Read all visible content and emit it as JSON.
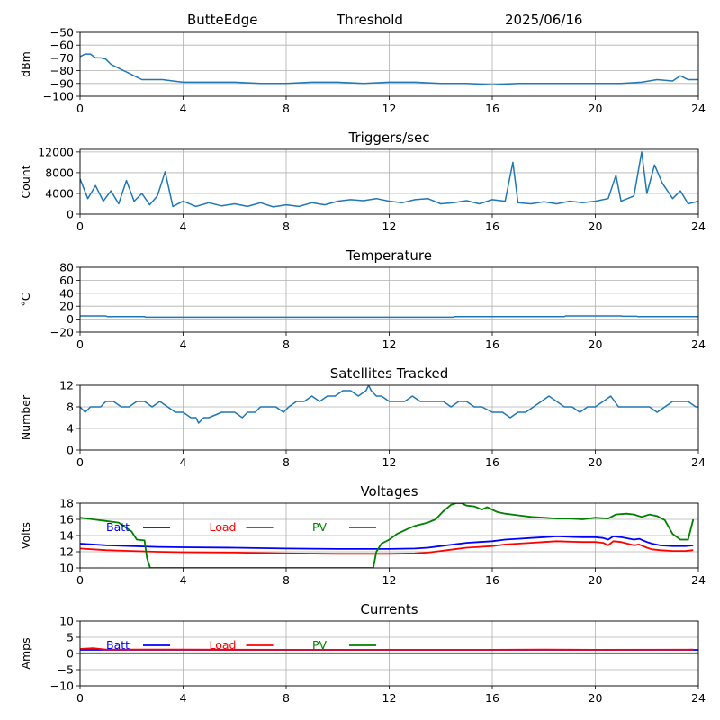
{
  "header": {
    "site": "ButteEdge",
    "label": "Threshold",
    "date": "2025/06/16"
  },
  "colors": {
    "series": "#1f77b4",
    "batt": "#0000ff",
    "load": "#ff0000",
    "pv": "#008000",
    "grid": "#b0b0b0"
  },
  "chart_data": [
    {
      "id": "threshold",
      "type": "line",
      "title": "",
      "xlabel": "",
      "ylabel": "dBm",
      "xlim": [
        0,
        24
      ],
      "ylim": [
        -100,
        -50
      ],
      "xticks": [
        0,
        4,
        8,
        12,
        16,
        20,
        24
      ],
      "yticks": [
        -100,
        -90,
        -80,
        -70,
        -60,
        -50
      ],
      "grid": true,
      "series": [
        {
          "x": [
            0,
            0.2,
            0.4,
            0.6,
            0.8,
            1.0,
            1.2,
            1.5,
            1.8,
            2.0,
            2.2,
            2.4,
            2.8,
            3.2,
            3.6,
            4.0,
            5,
            6,
            7,
            8,
            9,
            10,
            11,
            12,
            13,
            14,
            15,
            16,
            17,
            18,
            19,
            20,
            21,
            21.8,
            22.4,
            23.0,
            23.3,
            23.6,
            24
          ],
          "y": [
            -69,
            -67,
            -67,
            -70,
            -70,
            -71,
            -75,
            -78,
            -81,
            -83,
            -85,
            -87,
            -87,
            -87,
            -88,
            -89,
            -89,
            -89,
            -90,
            -90,
            -89,
            -89,
            -90,
            -89,
            -89,
            -90,
            -90,
            -91,
            -90,
            -90,
            -90,
            -90,
            -90,
            -89,
            -87,
            -88,
            -84,
            -87,
            -87
          ]
        }
      ]
    },
    {
      "id": "triggers",
      "type": "line",
      "title": "Triggers/sec",
      "xlabel": "",
      "ylabel": "Count",
      "xlim": [
        0,
        24
      ],
      "ylim": [
        0,
        12500
      ],
      "xticks": [
        0,
        4,
        8,
        12,
        16,
        20,
        24
      ],
      "yticks": [
        0,
        4000,
        8000,
        12000
      ],
      "grid": true,
      "series": [
        {
          "x": [
            0,
            0.3,
            0.6,
            0.9,
            1.2,
            1.5,
            1.8,
            2.1,
            2.4,
            2.7,
            3.0,
            3.3,
            3.6,
            4.0,
            4.5,
            5,
            5.5,
            6,
            6.5,
            7,
            7.5,
            8,
            8.5,
            9,
            9.5,
            10,
            10.5,
            11,
            11.5,
            12,
            12.5,
            13,
            13.5,
            14,
            14.5,
            15,
            15.5,
            16,
            16.5,
            16.8,
            17,
            17.5,
            18,
            18.5,
            19,
            19.5,
            20,
            20.5,
            20.8,
            21,
            21.5,
            21.8,
            22,
            22.3,
            22.6,
            23,
            23.3,
            23.6,
            24
          ],
          "y": [
            6800,
            3000,
            5500,
            2500,
            4500,
            2000,
            6500,
            2500,
            4000,
            1800,
            3500,
            8200,
            1500,
            2500,
            1500,
            2200,
            1600,
            2000,
            1500,
            2200,
            1400,
            1800,
            1500,
            2200,
            1800,
            2500,
            2800,
            2600,
            3000,
            2500,
            2200,
            2800,
            3000,
            2000,
            2200,
            2600,
            2000,
            2800,
            2500,
            10000,
            2200,
            2000,
            2400,
            2000,
            2500,
            2200,
            2500,
            3000,
            7500,
            2500,
            3500,
            12000,
            4000,
            9500,
            6000,
            3000,
            4500,
            2000,
            2500
          ]
        }
      ]
    },
    {
      "id": "temperature",
      "type": "line",
      "title": "Temperature",
      "xlabel": "",
      "ylabel": "°C",
      "xlim": [
        0,
        24
      ],
      "ylim": [
        -20,
        80
      ],
      "xticks": [
        0,
        4,
        8,
        12,
        16,
        20,
        24
      ],
      "yticks": [
        -20,
        0,
        20,
        40,
        60,
        80
      ],
      "grid": true,
      "series": [
        {
          "x": [
            0,
            1,
            1.05,
            2.5,
            2.55,
            14.5,
            14.55,
            18.8,
            18.85,
            21,
            21.05,
            21.6,
            21.65,
            24
          ],
          "y": [
            5,
            5,
            4,
            4,
            3,
            3,
            4,
            4,
            5,
            5,
            4.5,
            4.5,
            4,
            4
          ]
        }
      ]
    },
    {
      "id": "satellites",
      "type": "line",
      "title": "Satellites Tracked",
      "xlabel": "",
      "ylabel": "Number",
      "xlim": [
        0,
        24
      ],
      "ylim": [
        0,
        12
      ],
      "xticks": [
        0,
        4,
        8,
        12,
        16,
        20,
        24
      ],
      "yticks": [
        0,
        4,
        8,
        12
      ],
      "grid": true,
      "series": [
        {
          "x": [
            0,
            0.2,
            0.4,
            0.6,
            0.8,
            1.0,
            1.3,
            1.6,
            1.9,
            2.2,
            2.5,
            2.8,
            3.1,
            3.4,
            3.7,
            4.0,
            4.3,
            4.5,
            4.6,
            4.8,
            5.0,
            5.5,
            6.0,
            6.3,
            6.5,
            6.8,
            7.0,
            7.3,
            7.6,
            7.9,
            8.1,
            8.4,
            8.7,
            9.0,
            9.3,
            9.6,
            9.9,
            10.2,
            10.5,
            10.8,
            11.1,
            11.2,
            11.3,
            11.5,
            11.7,
            12.0,
            12.3,
            12.6,
            12.9,
            13.2,
            13.5,
            13.8,
            14.1,
            14.4,
            14.7,
            15.0,
            15.3,
            15.6,
            16.0,
            16.4,
            16.7,
            17.0,
            17.3,
            17.6,
            17.9,
            18.2,
            18.5,
            18.8,
            19.1,
            19.4,
            19.7,
            20.0,
            20.3,
            20.6,
            20.9,
            21.2,
            21.5,
            21.8,
            22.1,
            22.4,
            22.7,
            23.0,
            23.3,
            23.6,
            23.9,
            24
          ],
          "y": [
            8,
            7,
            8,
            8,
            8,
            9,
            9,
            8,
            8,
            9,
            9,
            8,
            9,
            8,
            7,
            7,
            6,
            6,
            5,
            6,
            6,
            7,
            7,
            6,
            7,
            7,
            8,
            8,
            8,
            7,
            8,
            9,
            9,
            10,
            9,
            10,
            10,
            11,
            11,
            10,
            11,
            12,
            11,
            10,
            10,
            9,
            9,
            9,
            10,
            9,
            9,
            9,
            9,
            8,
            9,
            9,
            8,
            8,
            7,
            7,
            6,
            7,
            7,
            8,
            9,
            10,
            9,
            8,
            8,
            7,
            8,
            8,
            9,
            10,
            8,
            8,
            8,
            8,
            8,
            7,
            8,
            9,
            9,
            9,
            8,
            8
          ]
        }
      ]
    },
    {
      "id": "voltages",
      "type": "line",
      "title": "Voltages",
      "xlabel": "",
      "ylabel": "Volts",
      "xlim": [
        0,
        24
      ],
      "ylim": [
        10,
        18
      ],
      "xticks": [
        0,
        4,
        8,
        12,
        16,
        20,
        24
      ],
      "yticks": [
        10,
        12,
        14,
        16,
        18
      ],
      "grid": true,
      "legend": "top-left",
      "series": [
        {
          "name": "Batt",
          "color": "batt",
          "x": [
            0,
            0.5,
            1,
            2,
            3,
            4,
            6,
            8,
            10,
            12,
            13,
            13.5,
            14,
            14.5,
            15,
            15.5,
            16,
            16.5,
            17,
            17.5,
            18,
            18.5,
            19,
            19.5,
            20,
            20.3,
            20.5,
            20.7,
            21,
            21.5,
            21.7,
            22,
            22.2,
            22.5,
            23,
            23.5,
            23.8
          ],
          "y": [
            13.0,
            12.9,
            12.8,
            12.7,
            12.6,
            12.55,
            12.5,
            12.4,
            12.35,
            12.35,
            12.4,
            12.5,
            12.7,
            12.9,
            13.1,
            13.2,
            13.3,
            13.5,
            13.6,
            13.7,
            13.8,
            13.9,
            13.85,
            13.8,
            13.8,
            13.7,
            13.5,
            13.9,
            13.8,
            13.5,
            13.6,
            13.2,
            13.0,
            12.8,
            12.7,
            12.7,
            12.8
          ]
        },
        {
          "name": "Load",
          "color": "load",
          "x": [
            0,
            0.5,
            1,
            2,
            3,
            4,
            6,
            8,
            10,
            12,
            13,
            13.5,
            14,
            14.5,
            15,
            15.5,
            16,
            16.5,
            17,
            17.5,
            18,
            18.5,
            19,
            19.5,
            20,
            20.3,
            20.5,
            20.7,
            21,
            21.5,
            21.7,
            22,
            22.2,
            22.5,
            23,
            23.5,
            23.8
          ],
          "y": [
            12.4,
            12.3,
            12.2,
            12.1,
            12.0,
            11.95,
            11.9,
            11.8,
            11.75,
            11.75,
            11.8,
            11.9,
            12.1,
            12.3,
            12.5,
            12.6,
            12.7,
            12.9,
            13.0,
            13.1,
            13.2,
            13.3,
            13.25,
            13.2,
            13.2,
            13.1,
            12.8,
            13.3,
            13.2,
            12.8,
            12.9,
            12.5,
            12.3,
            12.2,
            12.1,
            12.1,
            12.2
          ]
        },
        {
          "name": "PV",
          "color": "pv",
          "x": [
            0,
            0.5,
            1,
            1.5,
            2.0,
            2.2,
            2.5,
            2.6,
            2.72,
            11.38,
            11.5,
            11.7,
            12.0,
            12.3,
            12.7,
            13.0,
            13.5,
            13.8,
            14.1,
            14.4,
            14.6,
            14.8,
            15.0,
            15.3,
            15.6,
            15.8,
            16.2,
            16.5,
            17,
            17.5,
            18,
            18.5,
            19,
            19.5,
            20,
            20.5,
            20.8,
            21.2,
            21.5,
            21.8,
            22.1,
            22.4,
            22.7,
            23.0,
            23.3,
            23.6,
            23.8
          ],
          "y": [
            16.2,
            16.0,
            15.8,
            15.6,
            14.5,
            13.5,
            13.4,
            11.2,
            10,
            10,
            12.0,
            13.0,
            13.5,
            14.2,
            14.8,
            15.2,
            15.6,
            16.0,
            17.0,
            17.8,
            18.0,
            18.0,
            17.7,
            17.6,
            17.2,
            17.5,
            16.9,
            16.7,
            16.5,
            16.3,
            16.2,
            16.1,
            16.1,
            16.0,
            16.2,
            16.1,
            16.6,
            16.7,
            16.6,
            16.3,
            16.6,
            16.4,
            15.9,
            14.2,
            13.5,
            13.5,
            16.0
          ]
        }
      ]
    },
    {
      "id": "currents",
      "type": "line",
      "title": "Currents",
      "xlabel": "",
      "ylabel": "Amps",
      "xlim": [
        0,
        24
      ],
      "ylim": [
        -10,
        10
      ],
      "xticks": [
        0,
        4,
        8,
        12,
        16,
        20,
        24
      ],
      "yticks": [
        -10,
        -5,
        0,
        5,
        10
      ],
      "grid": true,
      "legend": "top-left",
      "series": [
        {
          "name": "Batt",
          "color": "batt",
          "x": [
            0,
            24
          ],
          "y": [
            1.1,
            1.1
          ]
        },
        {
          "name": "Load",
          "color": "load",
          "x": [
            0,
            0.5,
            1,
            4,
            8,
            12,
            16,
            18,
            20,
            23.8
          ],
          "y": [
            1.4,
            1.6,
            1.2,
            1.2,
            1.15,
            1.15,
            1.15,
            1.2,
            1.15,
            1.2
          ]
        },
        {
          "name": "PV",
          "color": "pv",
          "x": [
            0,
            24
          ],
          "y": [
            0.05,
            0.05
          ]
        }
      ]
    }
  ]
}
